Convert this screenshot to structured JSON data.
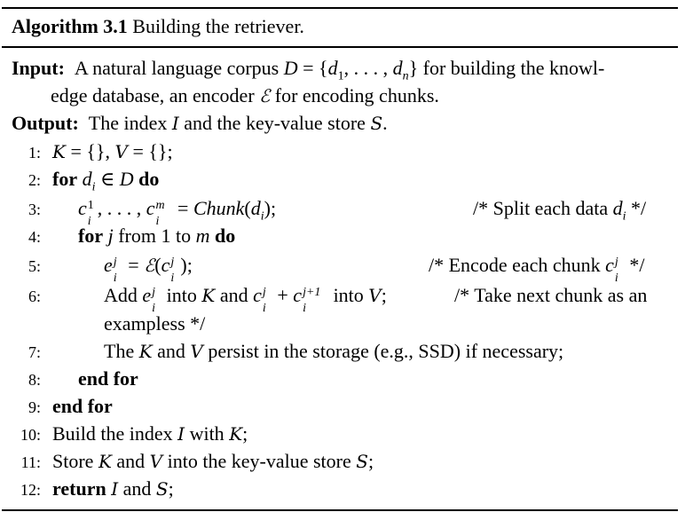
{
  "algorithm": {
    "title_label": "Algorithm 3.1",
    "title_text": "Building the retriever.",
    "input_label": "Input:",
    "input_text_1": "A natural language corpus",
    "input_text_2": "for building the knowl-",
    "input_text_3": "edge database, an encoder",
    "input_text_4": "for encoding chunks.",
    "output_label": "Output:",
    "output_text_1": "The index",
    "output_text_2": "and the key-value store",
    "lines": [
      {
        "num": "1:"
      },
      {
        "num": "2:",
        "kw_for": "for",
        "kw_do": "do"
      },
      {
        "num": "3:",
        "fn": "Chunk",
        "comment": "/* Split each data"
      },
      {
        "num": "4:",
        "kw_for": "for",
        "from": "from 1 to",
        "kw_do": "do"
      },
      {
        "num": "5:",
        "comment": "/* Encode each chunk"
      },
      {
        "num": "6:",
        "add": "Add",
        "into1": "into",
        "and": "and",
        "into2": "into",
        "comment": "/* Take next chunk as an",
        "cont": "exampless */"
      },
      {
        "num": "7:",
        "the": "The",
        "and": "and",
        "rest": "persist in the storage (e.g., SSD) if necessary;"
      },
      {
        "num": "8:",
        "kw": "end for"
      },
      {
        "num": "9:",
        "kw": "end for"
      },
      {
        "num": "10:",
        "text1": "Build the index",
        "text2": "with"
      },
      {
        "num": "11:",
        "text1": "Store",
        "text2": "and",
        "text3": "into the key-value store"
      },
      {
        "num": "12:",
        "kw": "return",
        "text2": "and"
      }
    ]
  }
}
